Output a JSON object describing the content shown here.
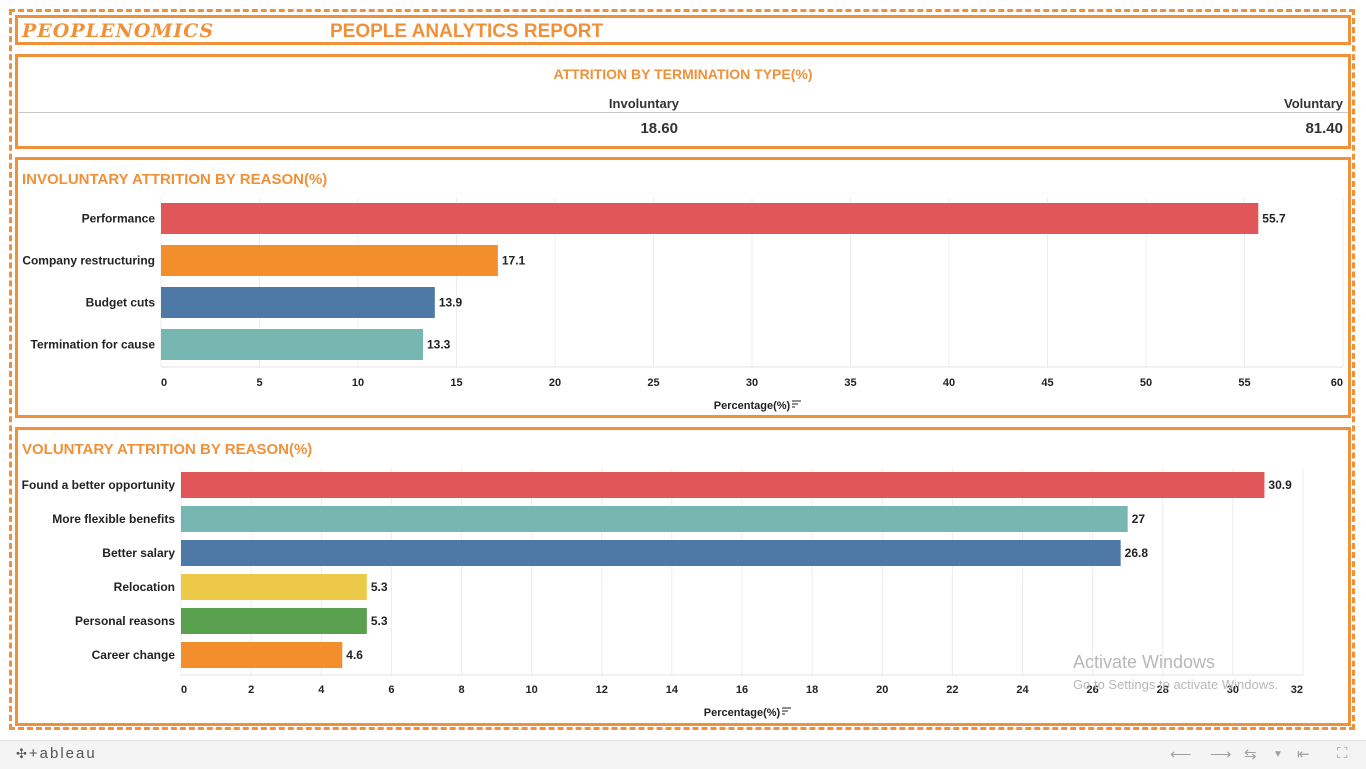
{
  "header": {
    "brand": "PEOPLENOMICS",
    "title": "PEOPLE ANALYTICS REPORT"
  },
  "kpi": {
    "title": "ATTRITION BY TERMINATION TYPE(%)",
    "col1_label": "Involuntary",
    "col1_value": "18.60",
    "col2_label": "Voluntary",
    "col2_value": "81.40"
  },
  "chart_data": [
    {
      "type": "bar",
      "orientation": "horizontal",
      "title": "INVOLUNTARY ATTRITION BY REASON(%)",
      "xlabel": "Percentage(%)",
      "ylabel": "",
      "categories": [
        "Performance",
        "Company restructuring",
        "Budget cuts",
        "Termination for cause"
      ],
      "values": [
        55.7,
        17.1,
        13.9,
        13.3
      ],
      "value_labels": [
        "55.7",
        "17.1",
        "13.9",
        "13.3"
      ],
      "colors": [
        "#e15759",
        "#f28e2b",
        "#4e79a7",
        "#76b7b2"
      ],
      "xlim": [
        0,
        60
      ],
      "ticks": [
        0,
        5,
        10,
        15,
        20,
        25,
        30,
        35,
        40,
        45,
        50,
        55,
        60
      ],
      "grid": true,
      "legend": "none"
    },
    {
      "type": "bar",
      "orientation": "horizontal",
      "title": "VOLUNTARY ATTRITION BY REASON(%)",
      "xlabel": "Percentage(%)",
      "ylabel": "",
      "categories": [
        "Found a better opportunity",
        "More flexible benefits",
        "Better salary",
        "Relocation",
        "Personal reasons",
        "Career change"
      ],
      "values": [
        30.9,
        27,
        26.8,
        5.3,
        5.3,
        4.6
      ],
      "value_labels": [
        "30.9",
        "27",
        "26.8",
        "5.3",
        "5.3",
        "4.6"
      ],
      "colors": [
        "#e15759",
        "#76b7b2",
        "#4e79a7",
        "#edc948",
        "#59a14f",
        "#f28e2b"
      ],
      "xlim": [
        0,
        32
      ],
      "ticks": [
        0,
        2,
        4,
        6,
        8,
        10,
        12,
        14,
        16,
        18,
        20,
        22,
        24,
        26,
        28,
        30,
        32
      ],
      "grid": true,
      "legend": "none"
    }
  ],
  "watermark": {
    "line1": "Activate Windows",
    "line2": "Go to Settings to activate Windows."
  },
  "footer": {
    "logo": "+ableau",
    "icons": [
      "undo-icon",
      "redo-icon",
      "revert-icon",
      "dropdown-icon",
      "reset-icon",
      "fullscreen-icon"
    ]
  }
}
